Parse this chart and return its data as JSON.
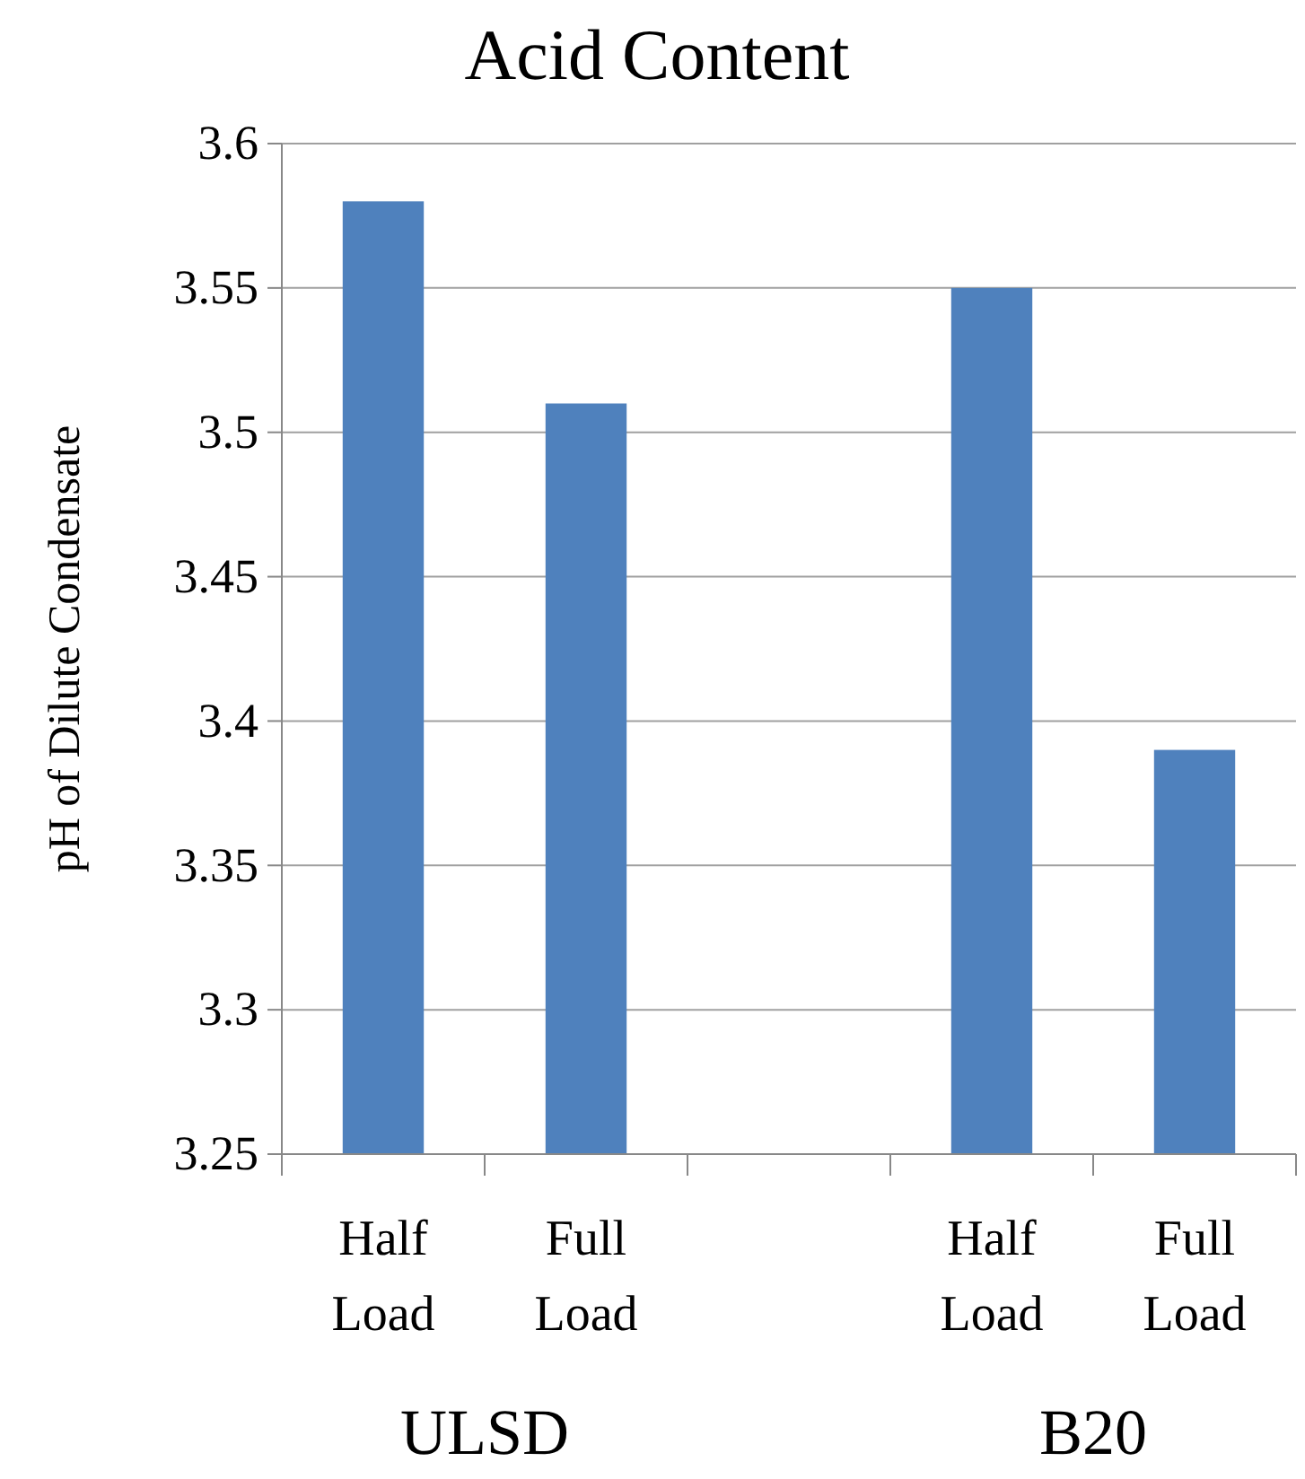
{
  "chart_data": {
    "type": "bar",
    "title": "Acid Content",
    "ylabel": "pH of Dilute Condensate",
    "categories": [
      "Half Load",
      "Full Load",
      null,
      "Half Load",
      "Full Load"
    ],
    "values": [
      3.58,
      3.51,
      null,
      3.55,
      3.39
    ],
    "color": "#4f81bd",
    "ylim": [
      3.25,
      3.6
    ],
    "yticks": [
      3.25,
      3.3,
      3.35,
      3.4,
      3.45,
      3.5,
      3.55,
      3.6
    ],
    "grid": "y",
    "annotations": [
      "ULSD",
      "B20"
    ]
  }
}
